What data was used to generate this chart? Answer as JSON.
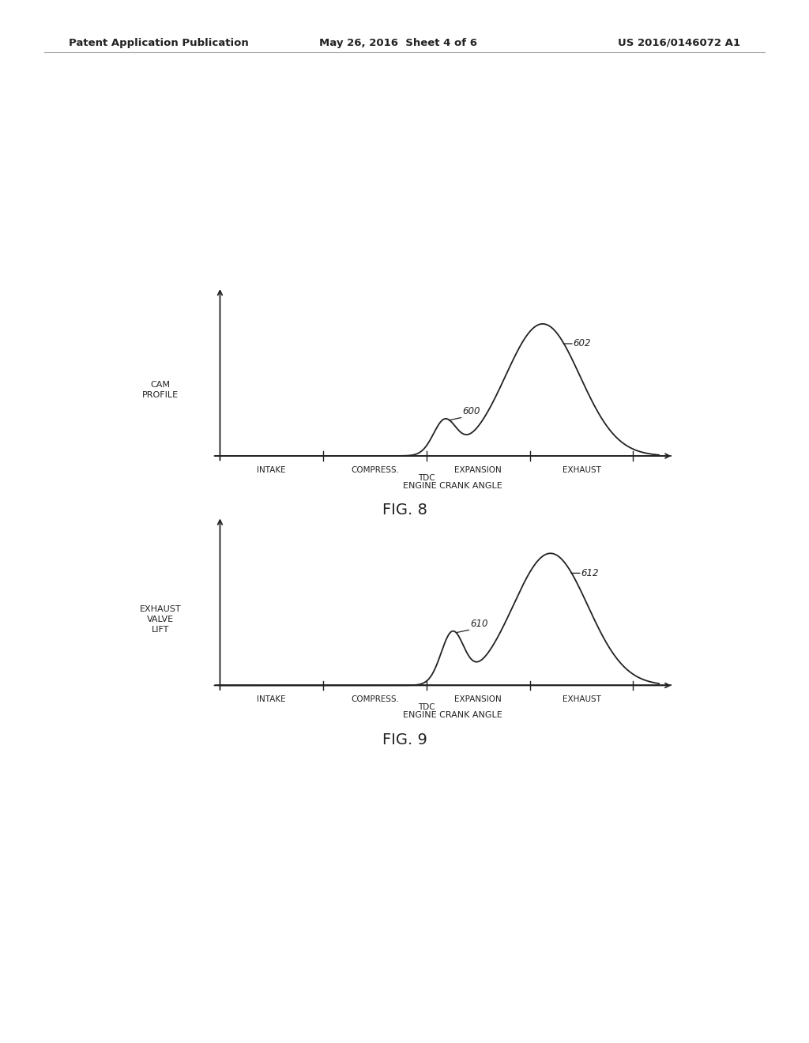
{
  "header_left": "Patent Application Publication",
  "header_center": "May 26, 2016  Sheet 4 of 6",
  "header_right": "US 2016/0146072 A1",
  "fig8_title": "FIG. 8",
  "fig9_title": "FIG. 9",
  "fig8_ylabel": "CAM\nPROFILE",
  "fig9_ylabel": "EXHAUST\nVALVE\nLIFT",
  "phase_labels": [
    "INTAKE",
    "COMPRESS.",
    "EXPANSION",
    "EXHAUST"
  ],
  "fig8_label_small": "600",
  "fig8_label_large": "602",
  "fig9_label_small": "610",
  "fig9_label_large": "612",
  "background_color": "#ffffff",
  "line_color": "#222222",
  "text_color": "#222222",
  "header_line_color": "#aaaaaa"
}
